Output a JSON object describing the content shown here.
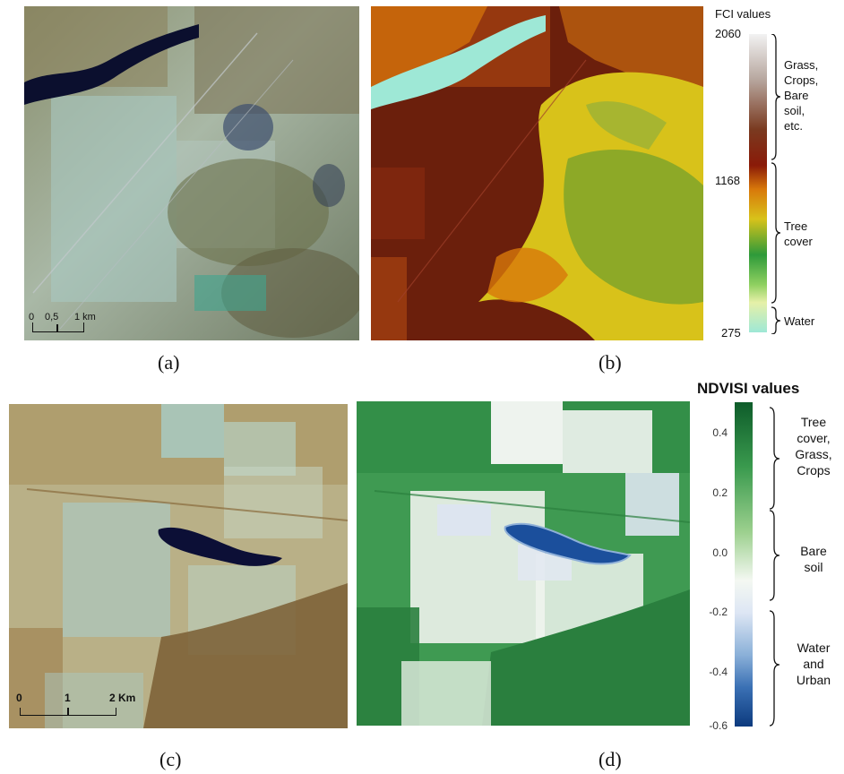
{
  "panel_a": {
    "scale": {
      "t0": "0",
      "t1": "0,5",
      "t2": "1 km"
    },
    "caption": "(a)"
  },
  "panel_b": {
    "legend_title": "FCI values",
    "ticks": {
      "top": "2060",
      "mid": "1168",
      "bottom": "275"
    },
    "classes": {
      "grass": "Grass,\nCrops,\nBare\nsoil,\netc.",
      "tree": "Tree\ncover",
      "water": "Water"
    },
    "caption": "(b)"
  },
  "panel_c": {
    "scale": {
      "t0": "0",
      "t1": "1",
      "t2": "2 Km"
    },
    "caption": "(c)"
  },
  "panel_d": {
    "legend_title": "NDVISI values",
    "ticks": [
      "0.4",
      "0.2",
      "0.0",
      "-0.2",
      "-0.4",
      "-0.6"
    ],
    "classes": {
      "tree": "Tree\ncover,\nGrass,\nCrops",
      "bare": "Bare\nsoil",
      "water": "Water\nand\nUrban"
    },
    "caption": "(d)"
  },
  "colors": {
    "fci_dark": "#6b1f0c",
    "fci_orange": "#d8780a",
    "fci_yellow": "#d8c21a",
    "fci_green": "#7aa22a",
    "fci_water": "#9ee8d6",
    "ndvi_green": "#1f7a38",
    "ndvi_blue": "#1b4f9c"
  }
}
